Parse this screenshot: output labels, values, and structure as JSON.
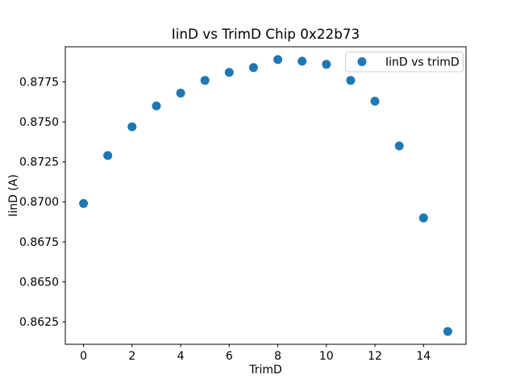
{
  "chart_data": {
    "type": "scatter",
    "title": "IinD vs TrimD Chip 0x22b73",
    "xlabel": "TrimD",
    "ylabel": "IinD (A)",
    "legend": {
      "label": "IinD vs trimD",
      "position": "upper right"
    },
    "series": [
      {
        "name": "IinD vs trimD",
        "x": [
          0,
          1,
          2,
          3,
          4,
          5,
          6,
          7,
          8,
          9,
          10,
          11,
          12,
          13,
          14,
          15
        ],
        "y": [
          0.8699,
          0.8729,
          0.8747,
          0.876,
          0.8768,
          0.8776,
          0.8781,
          0.8784,
          0.8789,
          0.8788,
          0.8786,
          0.8776,
          0.8763,
          0.8735,
          0.869,
          0.8619
        ]
      }
    ],
    "xlim": [
      -0.75,
      15.75
    ],
    "ylim": [
      0.8611,
      0.8797
    ],
    "x_ticks": [
      0,
      2,
      4,
      6,
      8,
      10,
      12,
      14
    ],
    "y_ticks": [
      0.8625,
      0.865,
      0.8675,
      0.87,
      0.8725,
      0.875,
      0.8775
    ],
    "y_tick_decimals": 4,
    "grid": false,
    "marker_color": "#1f77b4",
    "marker_radius_px": 5.5
  }
}
